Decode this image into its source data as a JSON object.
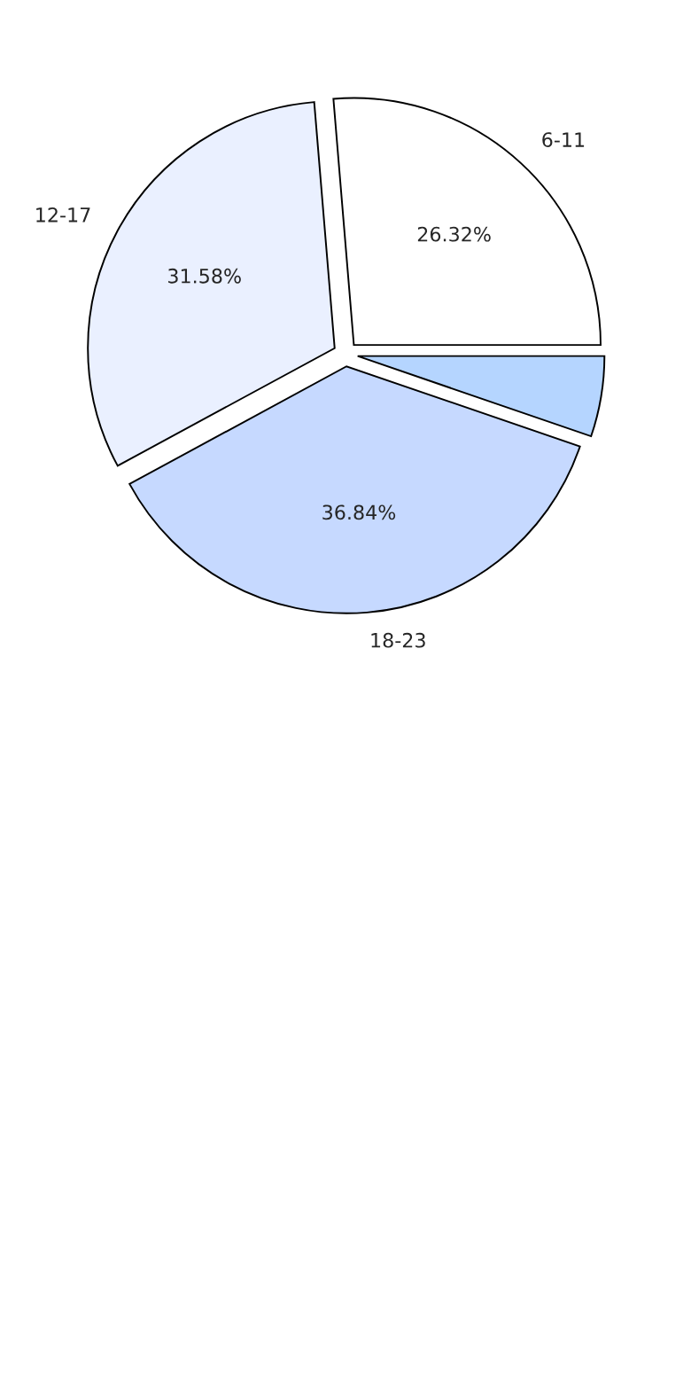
{
  "chart_data": {
    "type": "pie",
    "categories": [
      "6-11",
      "12-17",
      "18-23",
      null
    ],
    "values": [
      26.32,
      31.58,
      36.84,
      5.26
    ],
    "value_labels": [
      "26.32%",
      "31.58%",
      "36.84%",
      null
    ],
    "colors": [
      "#ffffff",
      "#eaf0ff",
      "#c6d9ff",
      "#b5d5ff"
    ]
  }
}
